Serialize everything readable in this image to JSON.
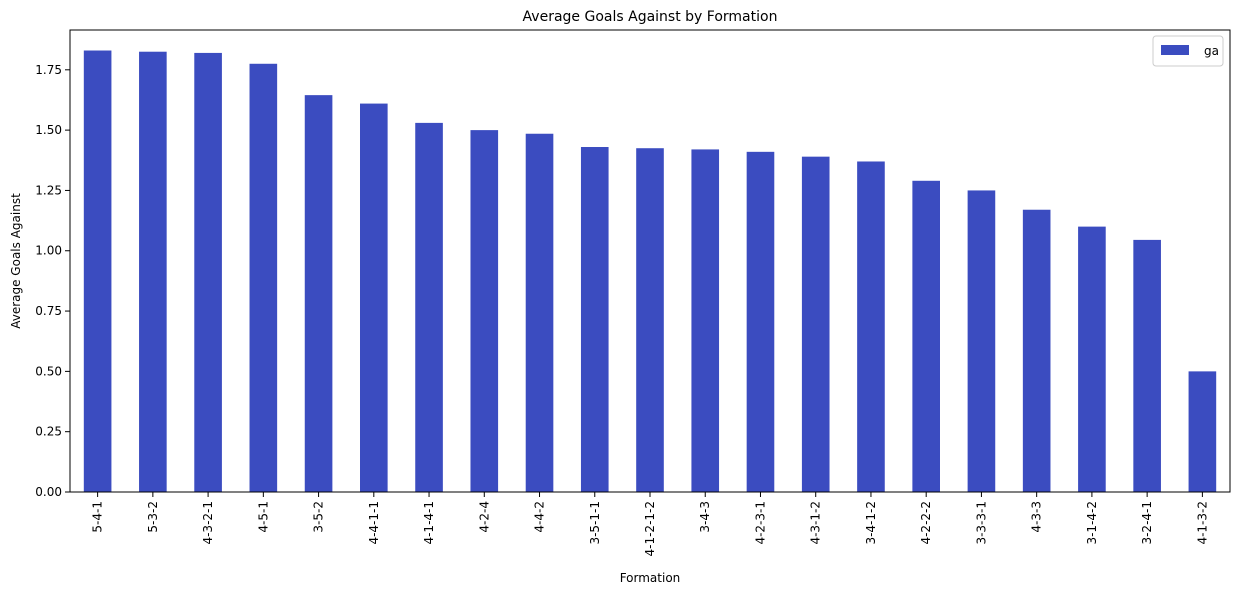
{
  "chart_data": {
    "type": "bar",
    "title": "Average Goals Against by Formation",
    "xlabel": "Formation",
    "ylabel": "Average Goals Against",
    "categories": [
      "5-4-1",
      "5-3-2",
      "4-3-2-1",
      "4-5-1",
      "3-5-2",
      "4-4-1-1",
      "4-1-4-1",
      "4-2-4",
      "4-4-2",
      "3-5-1-1",
      "4-1-2-1-2",
      "3-4-3",
      "4-2-3-1",
      "4-3-1-2",
      "3-4-1-2",
      "4-2-2-2",
      "3-3-3-1",
      "4-3-3",
      "3-1-4-2",
      "3-2-4-1",
      "4-1-3-2"
    ],
    "series": [
      {
        "name": "ga",
        "color": "#3b4cc0",
        "values": [
          1.83,
          1.825,
          1.82,
          1.775,
          1.645,
          1.61,
          1.53,
          1.5,
          1.485,
          1.43,
          1.425,
          1.42,
          1.41,
          1.39,
          1.37,
          1.29,
          1.25,
          1.17,
          1.1,
          1.045,
          0.5
        ]
      }
    ],
    "ylim": [
      0,
      1.915
    ],
    "yticks": [
      "0.00",
      "0.25",
      "0.50",
      "0.75",
      "1.00",
      "1.25",
      "1.50",
      "1.75"
    ],
    "grid": false,
    "legend_position": "top-right"
  }
}
